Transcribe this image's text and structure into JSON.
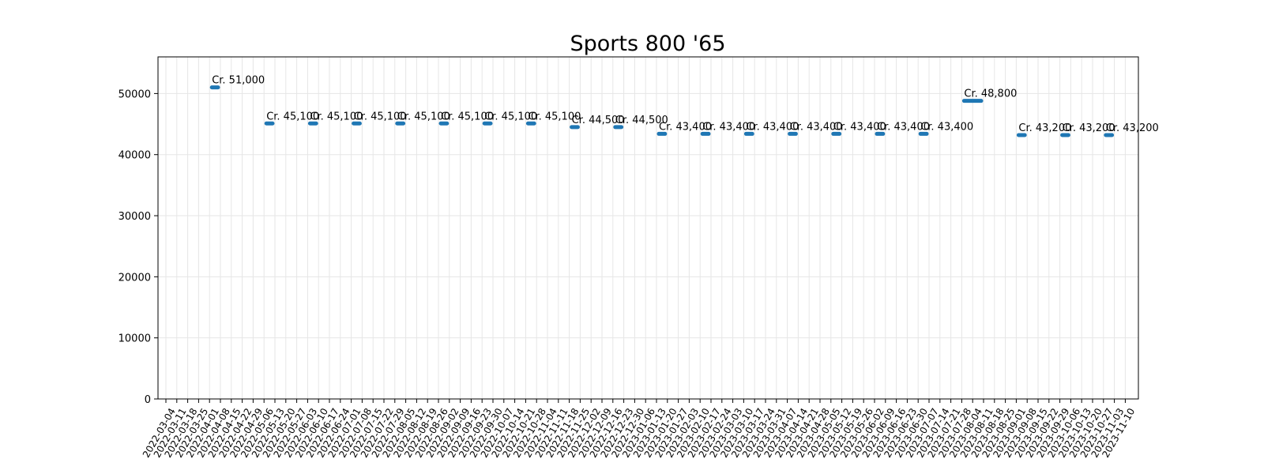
{
  "chart_data": {
    "type": "line",
    "title": "Sports 800 '65",
    "xlabel": "",
    "ylabel": "",
    "ylim": [
      0,
      56000
    ],
    "yticks": [
      0,
      10000,
      20000,
      30000,
      40000,
      50000
    ],
    "grid": true,
    "color": "#1f77b4",
    "x_dates": [
      "2022-03-04",
      "2022-03-11",
      "2022-03-18",
      "2022-03-25",
      "2022-04-01",
      "2022-04-08",
      "2022-04-15",
      "2022-04-22",
      "2022-04-29",
      "2022-05-06",
      "2022-05-13",
      "2022-05-20",
      "2022-05-27",
      "2022-06-03",
      "2022-06-10",
      "2022-06-17",
      "2022-06-24",
      "2022-07-01",
      "2022-07-08",
      "2022-07-15",
      "2022-07-22",
      "2022-07-29",
      "2022-08-05",
      "2022-08-12",
      "2022-08-19",
      "2022-08-26",
      "2022-09-02",
      "2022-09-09",
      "2022-09-16",
      "2022-09-23",
      "2022-09-30",
      "2022-10-07",
      "2022-10-14",
      "2022-10-21",
      "2022-10-28",
      "2022-11-04",
      "2022-11-11",
      "2022-11-18",
      "2022-11-25",
      "2022-12-02",
      "2022-12-09",
      "2022-12-16",
      "2022-12-23",
      "2022-12-30",
      "2023-01-06",
      "2023-01-13",
      "2023-01-20",
      "2023-01-27",
      "2023-02-03",
      "2023-02-10",
      "2023-02-17",
      "2023-02-24",
      "2023-03-03",
      "2023-03-10",
      "2023-03-17",
      "2023-03-24",
      "2023-03-31",
      "2023-04-07",
      "2023-04-14",
      "2023-04-21",
      "2023-04-28",
      "2023-05-05",
      "2023-05-12",
      "2023-05-19",
      "2023-05-26",
      "2023-06-02",
      "2023-06-09",
      "2023-06-16",
      "2023-06-23",
      "2023-06-30",
      "2023-07-07",
      "2023-07-14",
      "2023-07-21",
      "2023-07-28",
      "2023-08-04",
      "2023-08-11",
      "2023-08-18",
      "2023-08-25",
      "2023-09-01",
      "2023-09-08",
      "2023-09-15",
      "2023-09-22",
      "2023-09-29",
      "2023-10-06",
      "2023-10-13",
      "2023-10-20",
      "2023-10-27",
      "2023-11-03",
      "2023-11-10"
    ],
    "series": [
      {
        "start": "2022-04-01",
        "end": "2022-04-08",
        "value": 51000,
        "label": "Cr. 51,000"
      },
      {
        "start": "2022-05-06",
        "end": "2022-05-13",
        "value": 45100,
        "label": "Cr. 45,100"
      },
      {
        "start": "2022-06-03",
        "end": "2022-06-10",
        "value": 45100,
        "label": "Cr. 45,100"
      },
      {
        "start": "2022-07-01",
        "end": "2022-07-08",
        "value": 45100,
        "label": "Cr. 45,100"
      },
      {
        "start": "2022-07-29",
        "end": "2022-08-05",
        "value": 45100,
        "label": "Cr. 45,100"
      },
      {
        "start": "2022-08-26",
        "end": "2022-09-02",
        "value": 45100,
        "label": "Cr. 45,100"
      },
      {
        "start": "2022-09-23",
        "end": "2022-09-30",
        "value": 45100,
        "label": "Cr. 45,100"
      },
      {
        "start": "2022-10-21",
        "end": "2022-10-28",
        "value": 45100,
        "label": "Cr. 45,100"
      },
      {
        "start": "2022-11-18",
        "end": "2022-11-25",
        "value": 44500,
        "label": "Cr. 44,500"
      },
      {
        "start": "2022-12-16",
        "end": "2022-12-23",
        "value": 44500,
        "label": "Cr. 44,500"
      },
      {
        "start": "2023-01-13",
        "end": "2023-01-20",
        "value": 43400,
        "label": "Cr. 43,400"
      },
      {
        "start": "2023-02-10",
        "end": "2023-02-17",
        "value": 43400,
        "label": "Cr. 43,400"
      },
      {
        "start": "2023-03-10",
        "end": "2023-03-17",
        "value": 43400,
        "label": "Cr. 43,400"
      },
      {
        "start": "2023-04-07",
        "end": "2023-04-14",
        "value": 43400,
        "label": "Cr. 43,400"
      },
      {
        "start": "2023-05-05",
        "end": "2023-05-12",
        "value": 43400,
        "label": "Cr. 43,400"
      },
      {
        "start": "2023-06-02",
        "end": "2023-06-09",
        "value": 43400,
        "label": "Cr. 43,400"
      },
      {
        "start": "2023-06-30",
        "end": "2023-07-07",
        "value": 43400,
        "label": "Cr. 43,400"
      },
      {
        "start": "2023-07-28",
        "end": "2023-08-11",
        "value": 48800,
        "label": "Cr. 48,800"
      },
      {
        "start": "2023-09-01",
        "end": "2023-09-08",
        "value": 43200,
        "label": "Cr. 43,200"
      },
      {
        "start": "2023-09-29",
        "end": "2023-10-06",
        "value": 43200,
        "label": "Cr. 43,200"
      },
      {
        "start": "2023-10-27",
        "end": "2023-11-03",
        "value": 43200,
        "label": "Cr. 43,200"
      }
    ]
  }
}
